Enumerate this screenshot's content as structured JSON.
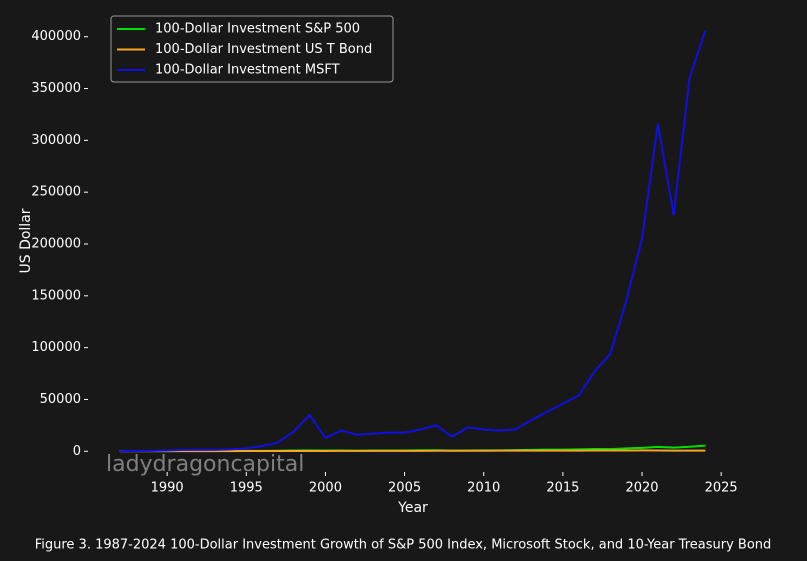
{
  "chart_data": {
    "type": "line",
    "xlabel": "Year",
    "ylabel": "US Dollar",
    "caption": "Figure 3. 1987-2024 100-Dollar Investment Growth of S&P 500 Index, Microsoft Stock, and 10-Year Treasury Bond",
    "watermark": "ladydragoncapital",
    "x": [
      1987,
      1988,
      1989,
      1990,
      1991,
      1992,
      1993,
      1994,
      1995,
      1996,
      1997,
      1998,
      1999,
      2000,
      2001,
      2002,
      2003,
      2004,
      2005,
      2006,
      2007,
      2008,
      2009,
      2010,
      2011,
      2012,
      2013,
      2014,
      2015,
      2016,
      2017,
      2018,
      2019,
      2020,
      2021,
      2022,
      2023,
      2024
    ],
    "series": [
      {
        "name": "100-Dollar Investment S&P 500",
        "color": "#00e000",
        "values": [
          105,
          123,
          162,
          157,
          205,
          220,
          242,
          245,
          337,
          414,
          552,
          710,
          860,
          781,
          688,
          536,
          690,
          765,
          803,
          929,
          980,
          618,
          781,
          899,
          917,
          1064,
          1409,
          1601,
          1624,
          1818,
          2215,
          2118,
          2786,
          3298,
          4245,
          3476,
          4390,
          5489
        ]
      },
      {
        "name": "100-Dollar Investment US T Bond",
        "color": "#f5a623",
        "values": [
          97,
          105,
          124,
          131,
          151,
          165,
          189,
          174,
          234,
          237,
          260,
          294,
          270,
          316,
          333,
          383,
          385,
          403,
          415,
          423,
          465,
          560,
          498,
          540,
          626,
          647,
          588,
          667,
          677,
          681,
          698,
          698,
          741,
          807,
          775,
          647,
          672,
          655
        ]
      },
      {
        "name": "100-Dollar Investment MSFT",
        "color": "#1010e0",
        "values": [
          200,
          300,
          400,
          700,
          1300,
          1500,
          1300,
          1800,
          2800,
          5000,
          8500,
          19000,
          35000,
          13000,
          20000,
          16000,
          17000,
          18000,
          18000,
          21000,
          25000,
          14000,
          23000,
          21000,
          20000,
          21000,
          30000,
          38000,
          46000,
          54000,
          77000,
          94000,
          145000,
          205000,
          316000,
          228000,
          360000,
          406000
        ]
      }
    ],
    "xlim": [
      1985,
      2026
    ],
    "ylim": [
      -20000,
      420000
    ],
    "xticks": [
      1990,
      1995,
      2000,
      2005,
      2010,
      2015,
      2020,
      2025
    ],
    "yticks": [
      0,
      50000,
      100000,
      150000,
      200000,
      250000,
      300000,
      350000,
      400000
    ],
    "legend": "upper-left"
  }
}
